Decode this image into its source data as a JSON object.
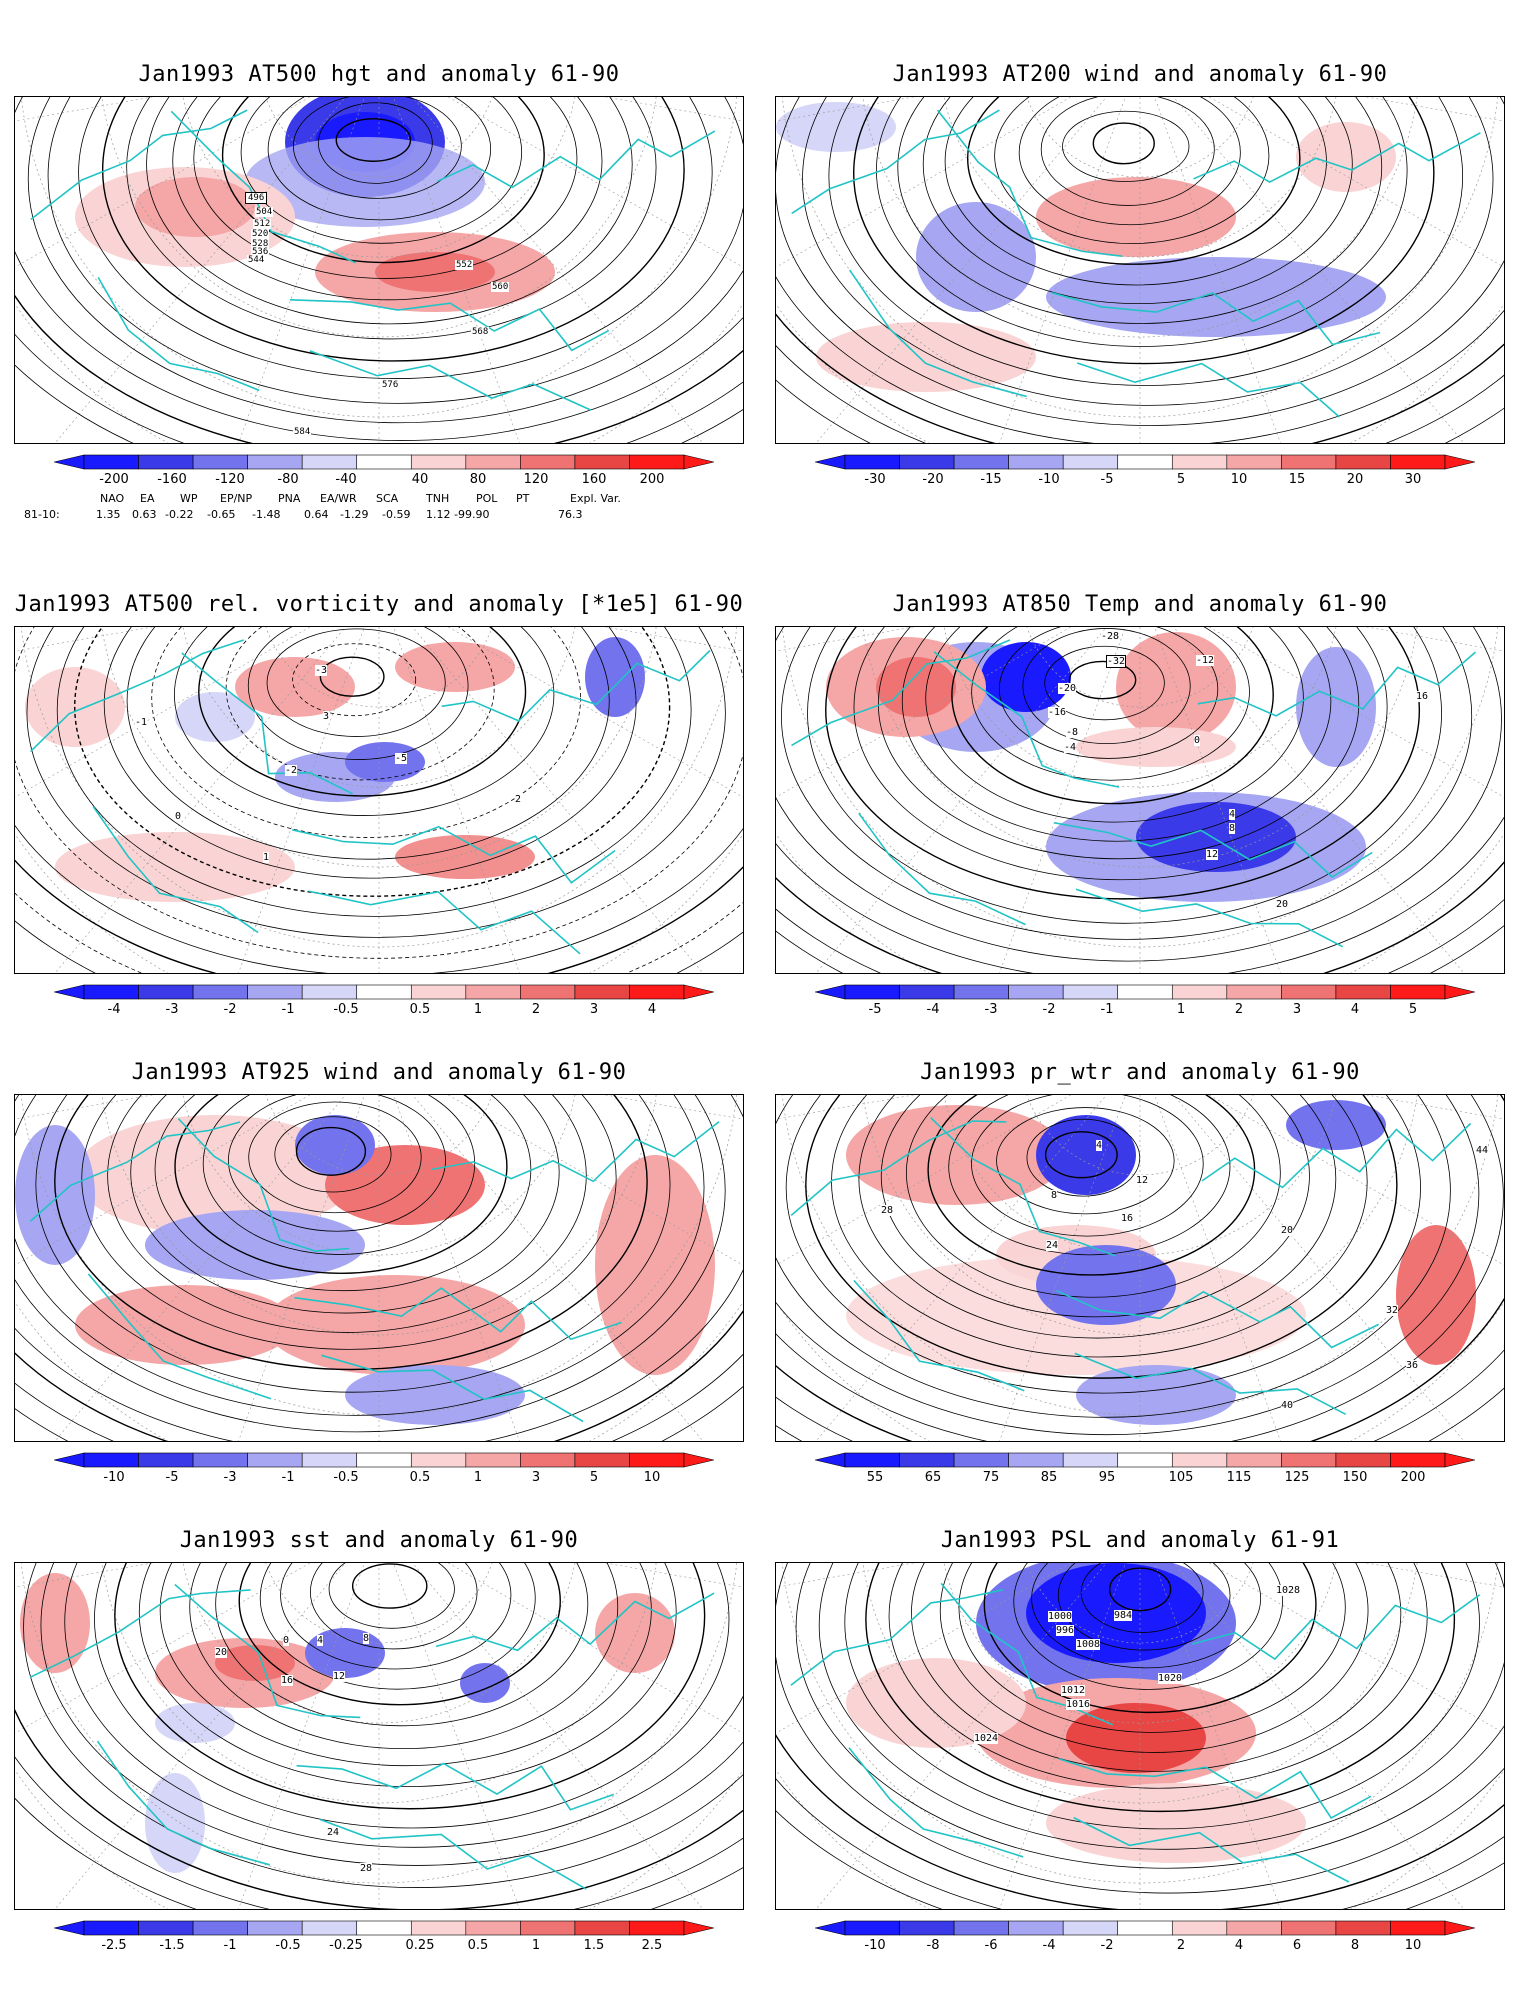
{
  "colors": {
    "coast": "#21c4c6",
    "contour": "#000000",
    "neg": [
      "#1a1aff",
      "#3a3ae8",
      "#7373ee",
      "#a6a6f2",
      "#d6d6f8"
    ],
    "pos": [
      "#fad4d4",
      "#f5a6a6",
      "#ef7373",
      "#e84545",
      "#ff1a1a"
    ]
  },
  "panels": [
    {
      "title": "Jan1993 AT500 hgt and anomaly 61-90",
      "legend": [
        "-200",
        "-160",
        "-120",
        "-80",
        "-40",
        "40",
        "80",
        "120",
        "160",
        "200"
      ],
      "contour_labels": [
        "496",
        "504",
        "512",
        "520",
        "528",
        "536",
        "544",
        "552",
        "560",
        "568",
        "576",
        "584"
      ]
    },
    {
      "title": "Jan1993 AT200 wind and anomaly 61-90",
      "legend": [
        "-30",
        "-20",
        "-15",
        "-10",
        "-5",
        "5",
        "10",
        "15",
        "20",
        "30"
      ],
      "contour_labels": []
    },
    {
      "title": "Jan1993 AT500 rel. vorticity and anomaly [*1e5] 61-90",
      "legend": [
        "-4",
        "-3",
        "-2",
        "-1",
        "-0.5",
        "0.5",
        "1",
        "2",
        "3",
        "4"
      ],
      "contour_labels": [
        "-1",
        "-2",
        "-3",
        "0",
        "1",
        "2",
        "3",
        "-5"
      ]
    },
    {
      "title": "Jan1993 AT850 Temp and anomaly 61-90",
      "legend": [
        "-5",
        "-4",
        "-3",
        "-2",
        "-1",
        "1",
        "2",
        "3",
        "4",
        "5"
      ],
      "contour_labels": [
        "-28",
        "-32",
        "-12",
        "-20",
        "-16",
        "-8",
        "-4",
        "0",
        "4",
        "8",
        "12",
        "16",
        "20"
      ]
    },
    {
      "title": "Jan1993 AT925 wind and anomaly 61-90",
      "legend": [
        "-10",
        "-5",
        "-3",
        "-1",
        "-0.5",
        "0.5",
        "1",
        "3",
        "5",
        "10"
      ],
      "contour_labels": []
    },
    {
      "title": "Jan1993 pr_wtr and anomaly 61-90",
      "legend": [
        "55",
        "65",
        "75",
        "85",
        "95",
        "105",
        "115",
        "125",
        "150",
        "200"
      ],
      "contour_labels": [
        "4",
        "8",
        "12",
        "16",
        "20",
        "24",
        "28",
        "32",
        "36",
        "40",
        "44"
      ]
    },
    {
      "title": "Jan1993 sst and anomaly 61-90",
      "legend": [
        "-2.5",
        "-1.5",
        "-1",
        "-0.5",
        "-0.25",
        "0.25",
        "0.5",
        "1",
        "1.5",
        "2.5"
      ],
      "contour_labels": [
        "0",
        "4",
        "8",
        "12",
        "16",
        "20",
        "24",
        "28"
      ]
    },
    {
      "title": "Jan1993 PSL and anomaly 61-91",
      "legend": [
        "-10",
        "-8",
        "-6",
        "-4",
        "-2",
        "2",
        "4",
        "6",
        "8",
        "10"
      ],
      "contour_labels": [
        "984",
        "996",
        "1000",
        "1008",
        "1012",
        "1016",
        "1020",
        "1024",
        "1028"
      ]
    }
  ],
  "teleconnections": {
    "period": "81-10:",
    "headers": [
      "NAO",
      "EA",
      "WP",
      "EP/NP",
      "PNA",
      "EA/WR",
      "SCA",
      "TNH",
      "POL",
      "PT",
      "Expl. Var."
    ],
    "values": [
      "1.35",
      "0.63",
      "-0.22",
      "-0.65",
      "-1.48",
      "0.64",
      "-1.29",
      "-0.59",
      "1.12",
      "-99.90",
      "76.3"
    ]
  }
}
